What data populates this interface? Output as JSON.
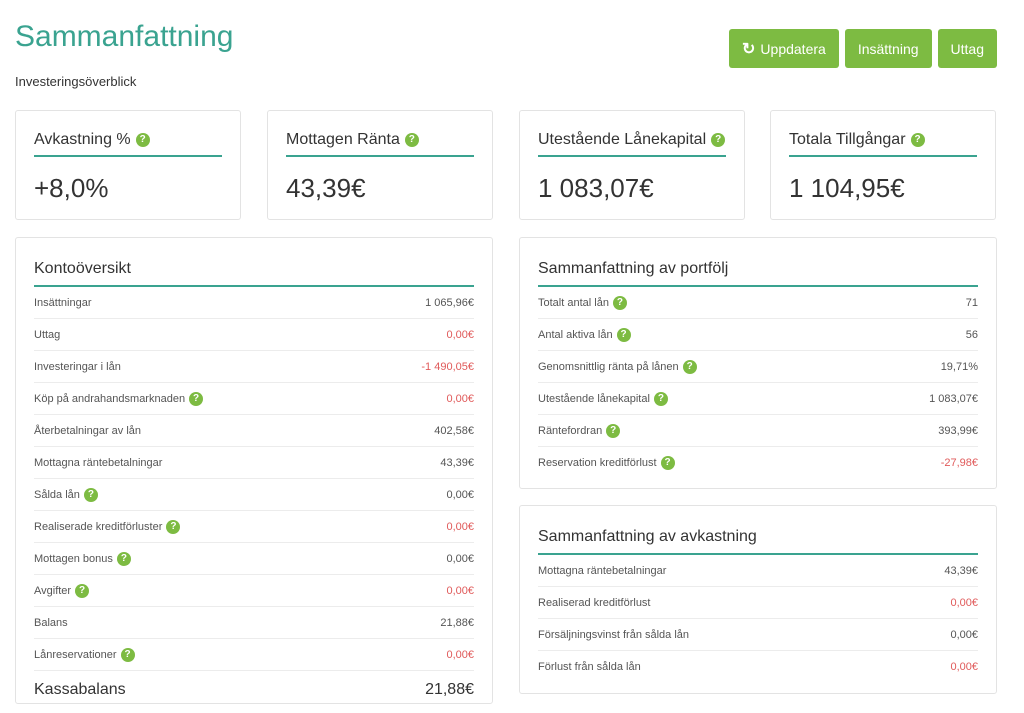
{
  "header": {
    "title": "Sammanfattning",
    "subtitle": "Investeringsöverblick",
    "buttons": {
      "refresh": "Uppdatera",
      "deposit": "Insättning",
      "withdraw": "Uttag"
    }
  },
  "stats": [
    {
      "label": "Avkastning %",
      "value": "+8,0%"
    },
    {
      "label": "Mottagen Ränta",
      "value": "43,39€"
    },
    {
      "label": "Utestående Lånekapital",
      "value": "1 083,07€"
    },
    {
      "label": "Totala Tillgångar",
      "value": "1 104,95€"
    }
  ],
  "account": {
    "title": "Kontoöversikt",
    "rows": [
      {
        "label": "Insättningar",
        "value": "1 065,96€"
      },
      {
        "label": "Uttag",
        "value": "0,00€"
      },
      {
        "label": "Investeringar i lån",
        "value": "-1 490,05€"
      },
      {
        "label": "Köp på andrahandsmarknaden",
        "value": "0,00€"
      },
      {
        "label": "Återbetalningar av lån",
        "value": "402,58€"
      },
      {
        "label": "Mottagna räntebetalningar",
        "value": "43,39€"
      },
      {
        "label": "Sålda lån",
        "value": "0,00€"
      },
      {
        "label": "Realiserade kreditförluster",
        "value": "0,00€"
      },
      {
        "label": "Mottagen bonus",
        "value": "0,00€"
      },
      {
        "label": "Avgifter",
        "value": "0,00€"
      },
      {
        "label": "Balans",
        "value": "21,88€"
      },
      {
        "label": "Lånreservationer",
        "value": "0,00€"
      }
    ],
    "total": {
      "label": "Kassabalans",
      "value": "21,88€"
    }
  },
  "portfolio": {
    "title": "Sammanfattning av portfölj",
    "rows": [
      {
        "label": "Totalt antal lån",
        "value": "71"
      },
      {
        "label": "Antal aktiva lån",
        "value": "56"
      },
      {
        "label": "Genomsnittlig ränta på lånen",
        "value": "19,71%"
      },
      {
        "label": "Utestående lånekapital",
        "value": "1 083,07€"
      },
      {
        "label": "Räntefordran",
        "value": "393,99€"
      },
      {
        "label": "Reservation kreditförlust",
        "value": "-27,98€"
      }
    ]
  },
  "returns": {
    "title": "Sammanfattning av avkastning",
    "rows": [
      {
        "label": "Mottagna räntebetalningar",
        "value": "43,39€"
      },
      {
        "label": "Realiserad kreditförlust",
        "value": "0,00€"
      },
      {
        "label": "Försäljningsvinst från sålda lån",
        "value": "0,00€"
      },
      {
        "label": "Förlust från sålda lån",
        "value": "0,00€"
      }
    ]
  },
  "help_glyph": "?",
  "refresh_glyph": "↻",
  "colors": {
    "accent": "#3aa390",
    "button": "#7dbb42",
    "negative": "#e05a5a"
  }
}
